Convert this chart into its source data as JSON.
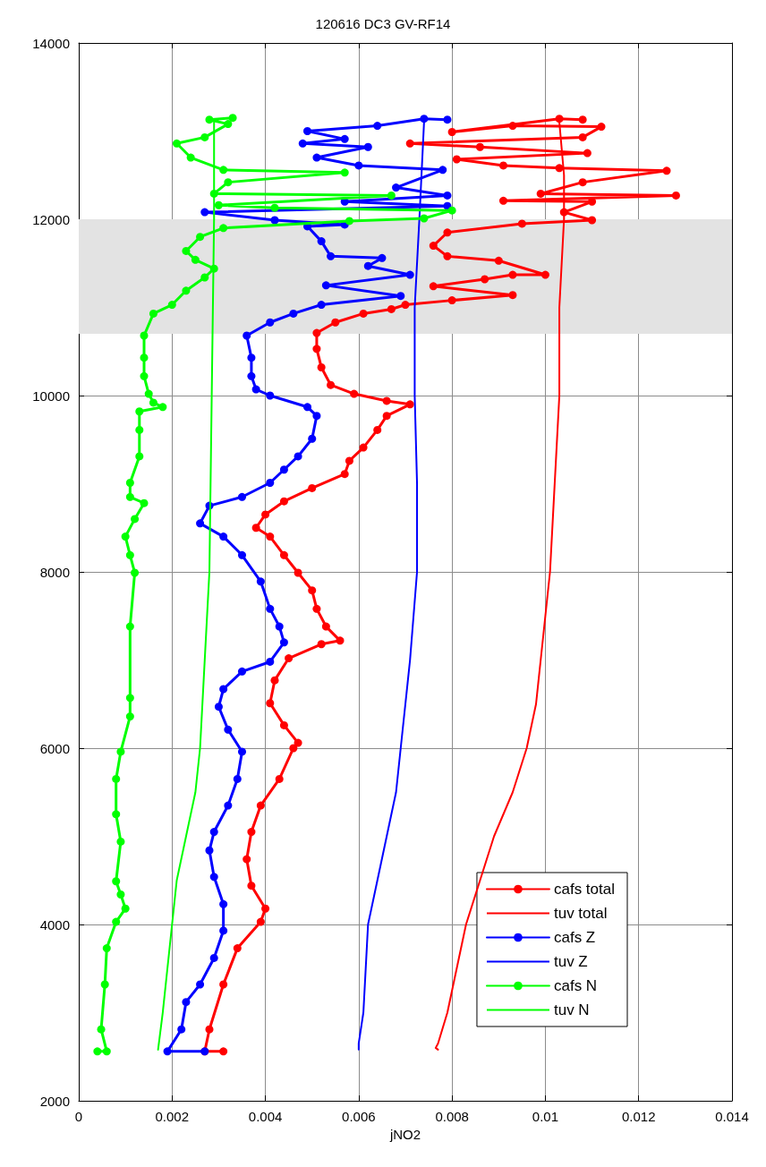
{
  "chart_data": {
    "type": "line",
    "title": "120616 DC3 GV-RF14",
    "xlabel": "jNO2",
    "xlim": [
      0,
      0.014
    ],
    "xticks": [
      0,
      0.002,
      0.004,
      0.006,
      0.008,
      0.01,
      0.012,
      0.014
    ],
    "ylim": [
      2000,
      14000
    ],
    "yticks": [
      2000,
      4000,
      6000,
      8000,
      10000,
      12000,
      14000
    ],
    "grid": true,
    "legend": "bottom right",
    "line_style": "solid",
    "bands": [
      {
        "axis": "y",
        "from": 10700,
        "to": 12000,
        "color": "#e3e3e3"
      }
    ],
    "series": [
      {
        "name": "cafs total",
        "color": "#ff0000",
        "marker": "circle",
        "x": [
          0.0031,
          0.0027,
          0.0028,
          0.0031,
          0.0034,
          0.0039,
          0.004,
          0.0037,
          0.0036,
          0.0037,
          0.0039,
          0.0043,
          0.0046,
          0.0047,
          0.0044,
          0.0041,
          0.0042,
          0.0045,
          0.0052,
          0.0056,
          0.0053,
          0.0051,
          0.005,
          0.0047,
          0.0044,
          0.0041,
          0.0038,
          0.004,
          0.0044,
          0.005,
          0.0057,
          0.0058,
          0.0061,
          0.0064,
          0.0066,
          0.0071,
          0.0066,
          0.0059,
          0.0054,
          0.0052,
          0.0051,
          0.0051,
          0.0055,
          0.0061,
          0.0067,
          0.007,
          0.008,
          0.0093,
          0.0076,
          0.0087,
          0.0093,
          0.01,
          0.009,
          0.0079,
          0.0076,
          0.0079,
          0.0095,
          0.011,
          0.0104,
          0.011,
          0.0091,
          0.0128,
          0.0099,
          0.0108,
          0.0126,
          0.0103,
          0.0091,
          0.0081,
          0.0109,
          0.0086,
          0.0071,
          0.0108,
          0.0112,
          0.0093,
          0.008,
          0.0103,
          0.0108
        ],
        "values": [
          2560,
          2560,
          2810,
          3320,
          3730,
          4030,
          4180,
          4440,
          4740,
          5050,
          5350,
          5650,
          6000,
          6060,
          6260,
          6510,
          6770,
          7020,
          7180,
          7220,
          7380,
          7580,
          7790,
          7990,
          8190,
          8400,
          8500,
          8650,
          8800,
          8950,
          9110,
          9260,
          9410,
          9610,
          9770,
          9900,
          9940,
          10020,
          10120,
          10320,
          10530,
          10710,
          10830,
          10930,
          10980,
          11030,
          11080,
          11140,
          11240,
          11320,
          11370,
          11370,
          11530,
          11580,
          11700,
          11850,
          11950,
          11990,
          12080,
          12200,
          12210,
          12270,
          12290,
          12420,
          12550,
          12580,
          12610,
          12680,
          12750,
          12820,
          12860,
          12930,
          13050,
          13060,
          12990,
          13140,
          13130
        ]
      },
      {
        "name": "tuv total",
        "color": "#ff0000",
        "marker": "none",
        "x": [
          0.0077,
          0.00765,
          0.0077,
          0.0079,
          0.0081,
          0.0083,
          0.0086,
          0.0089,
          0.0093,
          0.0096,
          0.0098,
          0.0099,
          0.01,
          0.0101,
          0.0102,
          0.0103,
          0.0103,
          0.0104,
          0.0104,
          0.0103
        ],
        "values": [
          2580,
          2600,
          2650,
          3000,
          3500,
          4000,
          4500,
          5000,
          5500,
          6000,
          6500,
          7000,
          7500,
          8000,
          9000,
          10000,
          11000,
          12000,
          12500,
          13100
        ]
      },
      {
        "name": "cafs Z",
        "color": "#0000ff",
        "marker": "circle",
        "x": [
          0.0027,
          0.0019,
          0.0022,
          0.0023,
          0.0026,
          0.0029,
          0.0031,
          0.0031,
          0.0029,
          0.0028,
          0.0029,
          0.0032,
          0.0034,
          0.0035,
          0.0032,
          0.003,
          0.0031,
          0.0035,
          0.0041,
          0.0044,
          0.0043,
          0.0041,
          0.0039,
          0.0035,
          0.0031,
          0.0026,
          0.0028,
          0.0035,
          0.0041,
          0.0044,
          0.0047,
          0.005,
          0.0051,
          0.0049,
          0.0041,
          0.0038,
          0.0037,
          0.0037,
          0.0036,
          0.0041,
          0.0046,
          0.0052,
          0.0069,
          0.0053,
          0.0071,
          0.0062,
          0.0065,
          0.0054,
          0.0052,
          0.0049,
          0.0057,
          0.0042,
          0.0027,
          0.0079,
          0.0057,
          0.0079,
          0.0068,
          0.0078,
          0.006,
          0.0051,
          0.0062,
          0.0048,
          0.0057,
          0.0049,
          0.0064,
          0.0074,
          0.0079
        ],
        "values": [
          2560,
          2560,
          2810,
          3120,
          3320,
          3620,
          3930,
          4230,
          4540,
          4840,
          5050,
          5350,
          5650,
          5960,
          6210,
          6470,
          6670,
          6870,
          6980,
          7200,
          7380,
          7580,
          7890,
          8190,
          8400,
          8550,
          8750,
          8850,
          9010,
          9160,
          9310,
          9510,
          9770,
          9870,
          10000,
          10070,
          10220,
          10430,
          10680,
          10830,
          10930,
          11030,
          11130,
          11250,
          11370,
          11470,
          11560,
          11580,
          11750,
          11920,
          11940,
          11990,
          12080,
          12150,
          12200,
          12270,
          12360,
          12560,
          12610,
          12700,
          12820,
          12860,
          12910,
          13000,
          13060,
          13140,
          13130
        ]
      },
      {
        "name": "tuv Z",
        "color": "#0000ff",
        "marker": "none",
        "x": [
          0.006,
          0.006,
          0.0061,
          0.00615,
          0.0062,
          0.0064,
          0.0066,
          0.0068,
          0.0069,
          0.0071,
          0.00725,
          0.00725,
          0.0072,
          0.0072,
          0.0073,
          0.0074
        ],
        "values": [
          2580,
          2650,
          3000,
          3500,
          4000,
          4500,
          5000,
          5500,
          6000,
          7000,
          8000,
          9000,
          10000,
          11000,
          12000,
          13100
        ]
      },
      {
        "name": "cafs N",
        "color": "#00ff00",
        "marker": "circle",
        "x": [
          0.0004,
          0.0006,
          0.00048,
          0.00056,
          0.0006,
          0.0008,
          0.001,
          0.0009,
          0.0008,
          0.0009,
          0.0008,
          0.0008,
          0.0009,
          0.0011,
          0.0011,
          0.0011,
          0.0012,
          0.0011,
          0.001,
          0.0012,
          0.0014,
          0.0011,
          0.0011,
          0.0013,
          0.0013,
          0.0013,
          0.0018,
          0.0016,
          0.0015,
          0.0014,
          0.0014,
          0.0014,
          0.0016,
          0.002,
          0.0023,
          0.0027,
          0.0029,
          0.0025,
          0.0023,
          0.0026,
          0.0031,
          0.0058,
          0.0074,
          0.008,
          0.0042,
          0.003,
          0.0067,
          0.0029,
          0.0032,
          0.0057,
          0.0031,
          0.0024,
          0.0021,
          0.0027,
          0.0032,
          0.0028,
          0.0033
        ],
        "values": [
          2560,
          2560,
          2810,
          3320,
          3730,
          4030,
          4180,
          4340,
          4490,
          4940,
          5250,
          5650,
          5960,
          6360,
          6570,
          7380,
          7990,
          8190,
          8400,
          8600,
          8780,
          8850,
          9010,
          9310,
          9610,
          9820,
          9870,
          9920,
          10020,
          10220,
          10430,
          10680,
          10930,
          11030,
          11190,
          11340,
          11440,
          11540,
          11640,
          11800,
          11900,
          11980,
          12010,
          12100,
          12130,
          12160,
          12270,
          12290,
          12420,
          12530,
          12560,
          12700,
          12860,
          12930,
          13080,
          13130,
          13150
        ]
      },
      {
        "name": "tuv N",
        "color": "#00ff00",
        "marker": "none",
        "x": [
          0.0017,
          0.0018,
          0.0019,
          0.002,
          0.0021,
          0.0023,
          0.0025,
          0.0026,
          0.0027,
          0.0028,
          0.00285,
          0.0029,
          0.0029
        ],
        "values": [
          2580,
          3000,
          3500,
          4000,
          4500,
          5000,
          5500,
          6000,
          7000,
          8000,
          10000,
          12000,
          13100
        ]
      }
    ]
  }
}
